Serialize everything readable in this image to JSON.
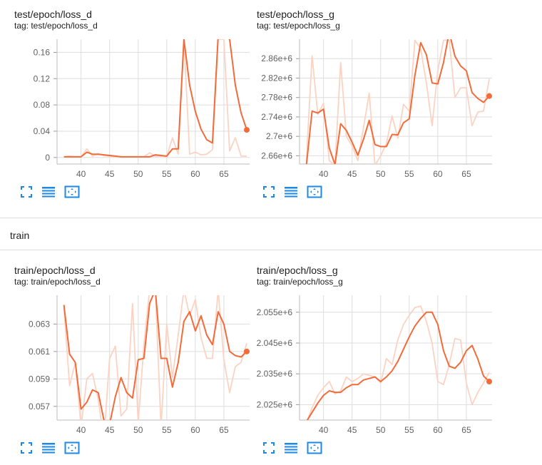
{
  "colors": {
    "series": "#f26b3a",
    "smoothed_raw": "#fbd3c3",
    "grid": "#dddddd",
    "axis_text": "#616161",
    "icon": "#1e88e5"
  },
  "section": {
    "title": "train"
  },
  "toolbar_icons": [
    "fullscreen-icon",
    "toggle-log-scale-icon",
    "fit-domain-icon"
  ],
  "charts": [
    {
      "title": "test/epoch/loss_d",
      "tag": "tag: test/epoch/loss_d",
      "chart_data": {
        "type": "line",
        "xlim": [
          35.8,
          69.5
        ],
        "ylim": [
          -0.01,
          0.18
        ],
        "x_ticks": [
          40,
          45,
          50,
          55,
          60,
          65
        ],
        "y_ticks": [
          0,
          0.04,
          0.08,
          0.12,
          0.16
        ],
        "y_tick_labels": [
          "0",
          "0.04",
          "0.08",
          "0.12",
          "0.16"
        ],
        "grid": true,
        "series": [
          {
            "style": "smoothed",
            "x": [
              37,
              38,
              39,
              40,
              41,
              42,
              43,
              44,
              45,
              46,
              47,
              48,
              49,
              50,
              51,
              52,
              53,
              54,
              55,
              56,
              57,
              58,
              59,
              60,
              61,
              62,
              63,
              64,
              65,
              66,
              67,
              68,
              69
            ],
            "y": [
              0.001,
              0.001,
              0.001,
              0.001,
              0.008,
              0.005,
              0.005,
              0.004,
              0.003,
              0.002,
              0.001,
              0.001,
              0.001,
              0.001,
              0.001,
              0.001,
              0.004,
              0.003,
              0.002,
              0.013,
              0.013,
              0.18,
              0.11,
              0.07,
              0.043,
              0.027,
              0.022,
              0.185,
              0.185,
              0.18,
              0.11,
              0.068,
              0.042
            ]
          },
          {
            "style": "raw",
            "x": [
              37,
              38,
              39,
              40,
              41,
              42,
              43,
              44,
              45,
              46,
              47,
              48,
              49,
              50,
              51,
              52,
              53,
              54,
              55,
              56,
              57,
              58,
              59,
              60,
              61,
              62,
              63,
              64,
              65,
              66,
              67,
              68,
              69
            ],
            "y": [
              0.001,
              0.002,
              0.001,
              0.001,
              0.013,
              0.002,
              0.006,
              0.003,
              0.002,
              0.001,
              0.001,
              0.001,
              0.001,
              0.001,
              0.001,
              0.007,
              0.002,
              0.002,
              0.001,
              0.03,
              0.005,
              0.18,
              0.005,
              0.008,
              0.004,
              0.005,
              0.012,
              0.18,
              0.18,
              0.01,
              0.03,
              0.002,
              0.002
            ]
          }
        ]
      }
    },
    {
      "title": "test/epoch/loss_g",
      "tag": "tag: test/epoch/loss_g",
      "chart_data": {
        "type": "line",
        "xlim": [
          35.8,
          69.5
        ],
        "ylim": [
          2643000,
          2900000
        ],
        "x_ticks": [
          40,
          45,
          50,
          55,
          60,
          65
        ],
        "y_ticks": [
          2660000,
          2700000,
          2740000,
          2780000,
          2820000,
          2860000
        ],
        "y_tick_labels": [
          "2.66e+6",
          "2.7e+6",
          "2.74e+6",
          "2.78e+6",
          "2.82e+6",
          "2.86e+6"
        ],
        "grid": true,
        "series": [
          {
            "style": "smoothed",
            "x": [
              37,
              38,
              39,
              40,
              41,
              42,
              43,
              44,
              45,
              46,
              47,
              48,
              49,
              50,
              51,
              52,
              53,
              54,
              55,
              56,
              57,
              58,
              59,
              60,
              61,
              62,
              63,
              64,
              65,
              66,
              67,
              68,
              69
            ],
            "y": [
              2640000,
              2752000,
              2748000,
              2756000,
              2676000,
              2642000,
              2726000,
              2712000,
              2688000,
              2661000,
              2694000,
              2733000,
              2683000,
              2679000,
              2679000,
              2704000,
              2703000,
              2728000,
              2736000,
              2826000,
              2893000,
              2868000,
              2810000,
              2808000,
              2852000,
              2915000,
              2865000,
              2845000,
              2835000,
              2790000,
              2778000,
              2770000,
              2783000
            ]
          },
          {
            "style": "raw",
            "x": [
              37,
              38,
              39,
              40,
              41,
              42,
              43,
              44,
              45,
              46,
              47,
              48,
              49,
              50,
              51,
              52,
              53,
              54,
              55,
              56,
              57,
              58,
              59,
              60,
              61,
              62,
              63,
              64,
              65,
              66,
              67,
              68,
              69
            ],
            "y": [
              2650000,
              2866000,
              2745000,
              2768000,
              2650000,
              2640000,
              2852000,
              2700000,
              2680000,
              2650000,
              2718000,
              2789000,
              2640000,
              2660000,
              2685000,
              2742000,
              2696000,
              2766000,
              2752000,
              2898000,
              2880000,
              2810000,
              2722000,
              2835000,
              2898000,
              2898000,
              2780000,
              2800000,
              2800000,
              2722000,
              2750000,
              2752000,
              2818000
            ]
          }
        ]
      }
    },
    {
      "title": "train/epoch/loss_d",
      "tag": "tag: train/epoch/loss_d",
      "chart_data": {
        "type": "line",
        "xlim": [
          35.8,
          69.5
        ],
        "ylim": [
          0.056,
          0.0651
        ],
        "x_ticks": [
          40,
          45,
          50,
          55,
          60,
          65
        ],
        "y_ticks": [
          0.057,
          0.059,
          0.061,
          0.063
        ],
        "y_tick_labels": [
          "0.057",
          "0.059",
          "0.061",
          "0.063"
        ],
        "grid": true,
        "series": [
          {
            "style": "smoothed",
            "x": [
              37,
              38,
              39,
              40,
              41,
              42,
              43,
              44,
              45,
              46,
              47,
              48,
              49,
              50,
              51,
              52,
              53,
              54,
              55,
              56,
              57,
              58,
              59,
              60,
              61,
              62,
              63,
              64,
              65,
              66,
              67,
              68,
              69
            ],
            "y": [
              0.0644,
              0.0608,
              0.0602,
              0.0568,
              0.0573,
              0.0582,
              0.058,
              0.056,
              0.0557,
              0.0577,
              0.0591,
              0.058,
              0.0576,
              0.0604,
              0.0605,
              0.0645,
              0.0655,
              0.0605,
              0.0605,
              0.0584,
              0.0602,
              0.0632,
              0.0639,
              0.0625,
              0.0636,
              0.0622,
              0.0615,
              0.0639,
              0.063,
              0.061,
              0.0607,
              0.0606,
              0.061
            ]
          },
          {
            "style": "raw",
            "x": [
              37,
              38,
              39,
              40,
              41,
              42,
              43,
              44,
              45,
              46,
              47,
              48,
              49,
              50,
              51,
              52,
              53,
              54,
              55,
              56,
              57,
              58,
              59,
              60,
              61,
              62,
              63,
              64,
              65,
              66,
              67,
              68,
              69
            ],
            "y": [
              0.0642,
              0.0585,
              0.0602,
              0.0555,
              0.059,
              0.0594,
              0.0575,
              0.0546,
              0.0605,
              0.0614,
              0.0563,
              0.0568,
              0.0645,
              0.0558,
              0.0615,
              0.0655,
              0.0655,
              0.0555,
              0.063,
              0.0591,
              0.0622,
              0.0655,
              0.0636,
              0.0648,
              0.062,
              0.0605,
              0.0605,
              0.0655,
              0.0604,
              0.058,
              0.0599,
              0.0602,
              0.0616
            ]
          }
        ]
      }
    },
    {
      "title": "train/epoch/loss_g",
      "tag": "tag: train/epoch/loss_g",
      "chart_data": {
        "type": "line",
        "xlim": [
          35.8,
          69.5
        ],
        "ylim": [
          2020000,
          2060500
        ],
        "x_ticks": [
          40,
          45,
          50,
          55,
          60,
          65
        ],
        "y_ticks": [
          2025000,
          2035000,
          2045000,
          2055000
        ],
        "y_tick_labels": [
          "2.025e+6",
          "2.035e+6",
          "2.045e+6",
          "2.055e+6"
        ],
        "grid": true,
        "series": [
          {
            "style": "smoothed",
            "x": [
              37,
              38,
              39,
              40,
              41,
              42,
              43,
              44,
              45,
              46,
              47,
              48,
              49,
              50,
              51,
              52,
              53,
              54,
              55,
              56,
              57,
              58,
              59,
              60,
              61,
              62,
              63,
              64,
              65,
              66,
              67,
              68,
              69
            ],
            "y": [
              2019500,
              2022500,
              2025500,
              2028000,
              2029500,
              2029000,
              2029000,
              2030500,
              2031500,
              2031500,
              2033000,
              2033500,
              2034000,
              2032500,
              2034000,
              2036000,
              2039000,
              2043000,
              2047000,
              2050500,
              2053000,
              2055000,
              2055000,
              2051000,
              2042500,
              2037500,
              2036800,
              2038800,
              2042500,
              2044200,
              2039800,
              2034300,
              2032500
            ]
          },
          {
            "style": "raw",
            "x": [
              37,
              38,
              39,
              40,
              41,
              42,
              43,
              44,
              45,
              46,
              47,
              48,
              49,
              50,
              51,
              52,
              53,
              54,
              55,
              56,
              57,
              58,
              59,
              60,
              61,
              62,
              63,
              64,
              65,
              66,
              67,
              68,
              69
            ],
            "y": [
              2019000,
              2024000,
              2028000,
              2030500,
              2032500,
              2028500,
              2029500,
              2034000,
              2032500,
              2033500,
              2035000,
              2034500,
              2034000,
              2032000,
              2040000,
              2038000,
              2046000,
              2051000,
              2054000,
              2056500,
              2057000,
              2052000,
              2045000,
              2032500,
              2031500,
              2038000,
              2046500,
              2046000,
              2032000,
              2025000,
              2029000,
              2032000,
              2035500
            ]
          }
        ]
      }
    }
  ]
}
